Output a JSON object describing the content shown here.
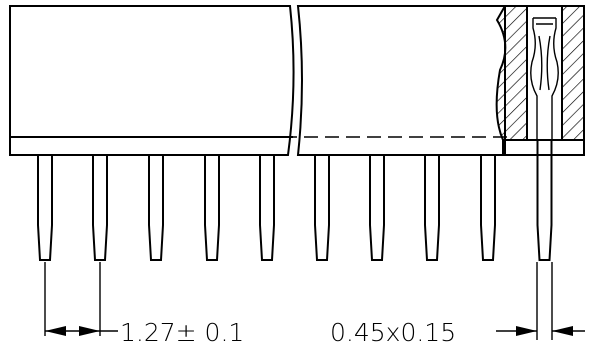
{
  "drawing": {
    "pin_count": 10,
    "pitch_label": "1.27± 0.1",
    "pin_size_label": "0.45x0.15",
    "line_color": "#000000",
    "background_color": "#ffffff"
  }
}
